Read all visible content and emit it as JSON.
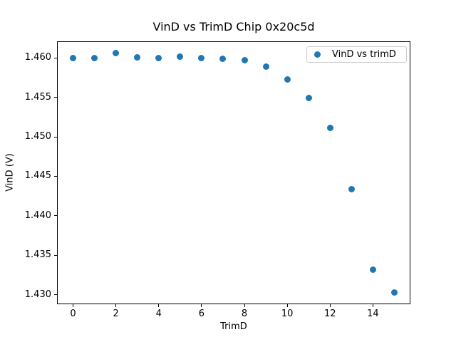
{
  "chart_data": {
    "type": "scatter",
    "title": "VinD vs TrimD Chip 0x20c5d",
    "xlabel": "TrimD",
    "ylabel": "VinD (V)",
    "grid": false,
    "legend": {
      "position": "upper right",
      "entries": [
        {
          "label": "VinD vs trimD",
          "marker": "circle",
          "marker_color": "#1f77b4"
        }
      ]
    },
    "series": [
      {
        "name": "VinD vs trimD",
        "color": "#1f77b4",
        "marker": "circle",
        "x": [
          0,
          1,
          2,
          3,
          4,
          5,
          6,
          7,
          8,
          9,
          10,
          11,
          12,
          13,
          14,
          15
        ],
        "y": [
          1.46,
          1.46,
          1.4606,
          1.4601,
          1.46,
          1.4602,
          1.46,
          1.4599,
          1.4597,
          1.4589,
          1.4573,
          1.4549,
          1.4511,
          1.4434,
          1.4332,
          1.4303
        ]
      }
    ],
    "xlim": [
      -0.75,
      15.75
    ],
    "ylim": [
      1.4288,
      1.4621
    ],
    "xticks": [
      {
        "value": 0,
        "label": "0"
      },
      {
        "value": 2,
        "label": "2"
      },
      {
        "value": 4,
        "label": "4"
      },
      {
        "value": 6,
        "label": "6"
      },
      {
        "value": 8,
        "label": "8"
      },
      {
        "value": 10,
        "label": "10"
      },
      {
        "value": 12,
        "label": "12"
      },
      {
        "value": 14,
        "label": "14"
      }
    ],
    "yticks": [
      {
        "value": 1.43,
        "label": "1.430"
      },
      {
        "value": 1.435,
        "label": "1.435"
      },
      {
        "value": 1.44,
        "label": "1.440"
      },
      {
        "value": 1.445,
        "label": "1.445"
      },
      {
        "value": 1.45,
        "label": "1.450"
      },
      {
        "value": 1.455,
        "label": "1.455"
      },
      {
        "value": 1.46,
        "label": "1.460"
      }
    ]
  }
}
